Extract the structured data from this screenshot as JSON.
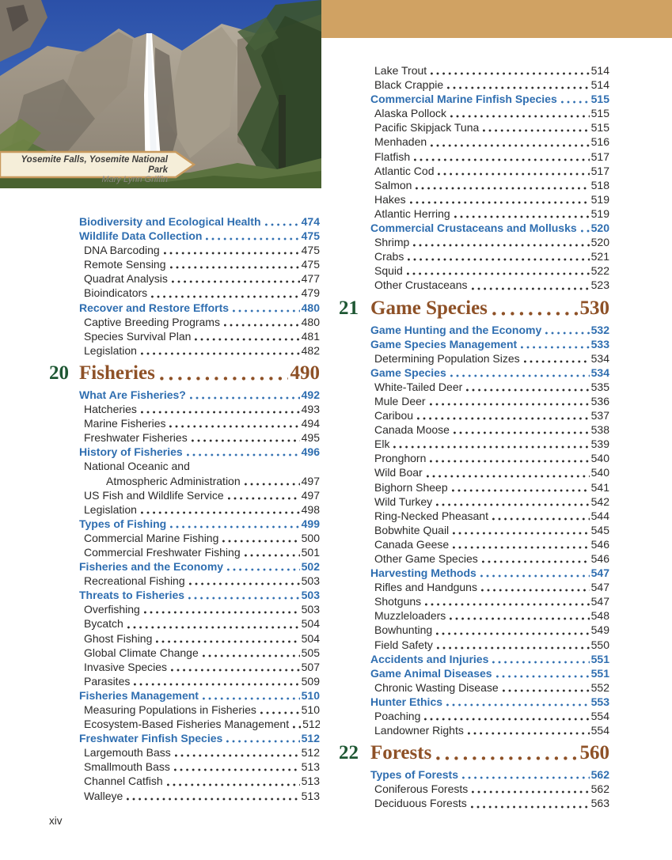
{
  "page": {
    "folio": "xiv"
  },
  "photo": {
    "caption_title": "Yosemite Falls, Yosemite National Park",
    "caption_credit": "Mary Lynn Griffin"
  },
  "colors": {
    "accent_tan": "#d0a263",
    "heading_blue": "#2f6eb0",
    "chapter_brown": "#8e5127",
    "chapter_number_green": "#1e5733",
    "body_text": "#2b2a29",
    "banner_cream": "#f5eed9"
  },
  "columns": {
    "left": [
      {
        "type": "h",
        "label": "Biodiversity and Ecological Health",
        "page": "474"
      },
      {
        "type": "h",
        "label": "Wildlife Data Collection",
        "page": "475"
      },
      {
        "type": "e",
        "label": "DNA Barcoding",
        "page": "475"
      },
      {
        "type": "e",
        "label": "Remote Sensing",
        "page": "475"
      },
      {
        "type": "e",
        "label": "Quadrat Analysis",
        "page": "477"
      },
      {
        "type": "e",
        "label": "Bioindicators",
        "page": "479"
      },
      {
        "type": "h",
        "label": "Recover and Restore Efforts",
        "page": "480"
      },
      {
        "type": "e",
        "label": "Captive Breeding Programs",
        "page": "480"
      },
      {
        "type": "e",
        "label": "Species Survival Plan",
        "page": "481"
      },
      {
        "type": "e",
        "label": "Legislation",
        "page": "482"
      },
      {
        "type": "c",
        "num": "20",
        "label": "Fisheries",
        "page": "490"
      },
      {
        "type": "h",
        "label": "What Are Fisheries?",
        "page": "492"
      },
      {
        "type": "e",
        "label": "Hatcheries",
        "page": "493"
      },
      {
        "type": "e",
        "label": "Marine Fisheries",
        "page": "494"
      },
      {
        "type": "e",
        "label": "Freshwater Fisheries",
        "page": "495"
      },
      {
        "type": "h",
        "label": "History of Fisheries",
        "page": "496"
      },
      {
        "type": "e2",
        "line1": "National Oceanic and",
        "label": "Atmospheric Administration",
        "page": "497"
      },
      {
        "type": "e",
        "label": "US Fish and Wildlife Service",
        "page": "497"
      },
      {
        "type": "e",
        "label": "Legislation",
        "page": "498"
      },
      {
        "type": "h",
        "label": "Types of Fishing",
        "page": "499"
      },
      {
        "type": "e",
        "label": "Commercial Marine Fishing",
        "page": "500"
      },
      {
        "type": "e",
        "label": "Commercial Freshwater Fishing",
        "page": "501"
      },
      {
        "type": "h",
        "label": "Fisheries and the Economy",
        "page": "502"
      },
      {
        "type": "e",
        "label": "Recreational Fishing",
        "page": "503"
      },
      {
        "type": "h",
        "label": "Threats to Fisheries",
        "page": "503"
      },
      {
        "type": "e",
        "label": "Overfishing",
        "page": "503"
      },
      {
        "type": "e",
        "label": "Bycatch",
        "page": "504"
      },
      {
        "type": "e",
        "label": "Ghost Fishing",
        "page": "504"
      },
      {
        "type": "e",
        "label": "Global Climate Change",
        "page": "505"
      },
      {
        "type": "e",
        "label": "Invasive Species",
        "page": "507"
      },
      {
        "type": "e",
        "label": "Parasites",
        "page": "509"
      },
      {
        "type": "h",
        "label": "Fisheries Management",
        "page": "510"
      },
      {
        "type": "e",
        "label": "Measuring Populations in Fisheries",
        "page": "510"
      },
      {
        "type": "e",
        "label": "Ecosystem-Based Fisheries Management",
        "page": "512"
      },
      {
        "type": "h",
        "label": "Freshwater Finfish Species",
        "page": "512"
      },
      {
        "type": "e",
        "label": "Largemouth Bass",
        "page": "512"
      },
      {
        "type": "e",
        "label": "Smallmouth Bass",
        "page": "513"
      },
      {
        "type": "e",
        "label": "Channel Catfish",
        "page": "513"
      },
      {
        "type": "e",
        "label": "Walleye",
        "page": "513"
      }
    ],
    "right": [
      {
        "type": "e",
        "label": "Lake Trout",
        "page": "514"
      },
      {
        "type": "e",
        "label": "Black Crappie",
        "page": "514"
      },
      {
        "type": "h",
        "label": "Commercial Marine Finfish Species",
        "page": "515"
      },
      {
        "type": "e",
        "label": "Alaska Pollock",
        "page": "515"
      },
      {
        "type": "e",
        "label": "Pacific Skipjack Tuna",
        "page": "515"
      },
      {
        "type": "e",
        "label": "Menhaden",
        "page": "516"
      },
      {
        "type": "e",
        "label": "Flatfish",
        "page": "517"
      },
      {
        "type": "e",
        "label": "Atlantic Cod",
        "page": "517"
      },
      {
        "type": "e",
        "label": "Salmon",
        "page": "518"
      },
      {
        "type": "e",
        "label": "Hakes",
        "page": "519"
      },
      {
        "type": "e",
        "label": "Atlantic Herring",
        "page": "519"
      },
      {
        "type": "h",
        "label": "Commercial Crustaceans and Mollusks",
        "page": "520"
      },
      {
        "type": "e",
        "label": "Shrimp",
        "page": "520"
      },
      {
        "type": "e",
        "label": "Crabs",
        "page": "521"
      },
      {
        "type": "e",
        "label": "Squid",
        "page": "522"
      },
      {
        "type": "e",
        "label": "Other Crustaceans",
        "page": "523"
      },
      {
        "type": "c",
        "num": "21",
        "label": "Game Species",
        "page": "530"
      },
      {
        "type": "h",
        "label": "Game Hunting and the Economy",
        "page": "532"
      },
      {
        "type": "h",
        "label": "Game Species Management",
        "page": "533"
      },
      {
        "type": "e",
        "label": "Determining Population Sizes",
        "page": "534"
      },
      {
        "type": "h",
        "label": "Game Species",
        "page": "534"
      },
      {
        "type": "e",
        "label": "White-Tailed Deer",
        "page": "535"
      },
      {
        "type": "e",
        "label": "Mule Deer",
        "page": "536"
      },
      {
        "type": "e",
        "label": "Caribou",
        "page": "537"
      },
      {
        "type": "e",
        "label": "Canada Moose",
        "page": "538"
      },
      {
        "type": "e",
        "label": "Elk",
        "page": "539"
      },
      {
        "type": "e",
        "label": "Pronghorn",
        "page": "540"
      },
      {
        "type": "e",
        "label": "Wild Boar",
        "page": "540"
      },
      {
        "type": "e",
        "label": "Bighorn Sheep",
        "page": "541"
      },
      {
        "type": "e",
        "label": "Wild Turkey",
        "page": "542"
      },
      {
        "type": "e",
        "label": "Ring-Necked Pheasant",
        "page": "544"
      },
      {
        "type": "e",
        "label": "Bobwhite Quail",
        "page": "545"
      },
      {
        "type": "e",
        "label": "Canada Geese",
        "page": "546"
      },
      {
        "type": "e",
        "label": "Other Game Species",
        "page": "546"
      },
      {
        "type": "h",
        "label": "Harvesting Methods",
        "page": "547"
      },
      {
        "type": "e",
        "label": "Rifles and Handguns",
        "page": "547"
      },
      {
        "type": "e",
        "label": "Shotguns",
        "page": "547"
      },
      {
        "type": "e",
        "label": "Muzzleloaders",
        "page": "548"
      },
      {
        "type": "e",
        "label": "Bowhunting",
        "page": "549"
      },
      {
        "type": "e",
        "label": "Field Safety",
        "page": "550"
      },
      {
        "type": "h",
        "label": "Accidents and Injuries",
        "page": "551"
      },
      {
        "type": "h",
        "label": "Game Animal Diseases",
        "page": "551"
      },
      {
        "type": "e",
        "label": "Chronic Wasting Disease",
        "page": "552"
      },
      {
        "type": "h",
        "label": "Hunter Ethics",
        "page": "553"
      },
      {
        "type": "e",
        "label": "Poaching",
        "page": "554"
      },
      {
        "type": "e",
        "label": "Landowner Rights",
        "page": "554"
      },
      {
        "type": "c",
        "num": "22",
        "label": "Forests",
        "page": "560"
      },
      {
        "type": "h",
        "label": "Types of Forests",
        "page": "562"
      },
      {
        "type": "e",
        "label": "Coniferous Forests",
        "page": "562"
      },
      {
        "type": "e",
        "label": "Deciduous Forests",
        "page": "563"
      }
    ]
  }
}
